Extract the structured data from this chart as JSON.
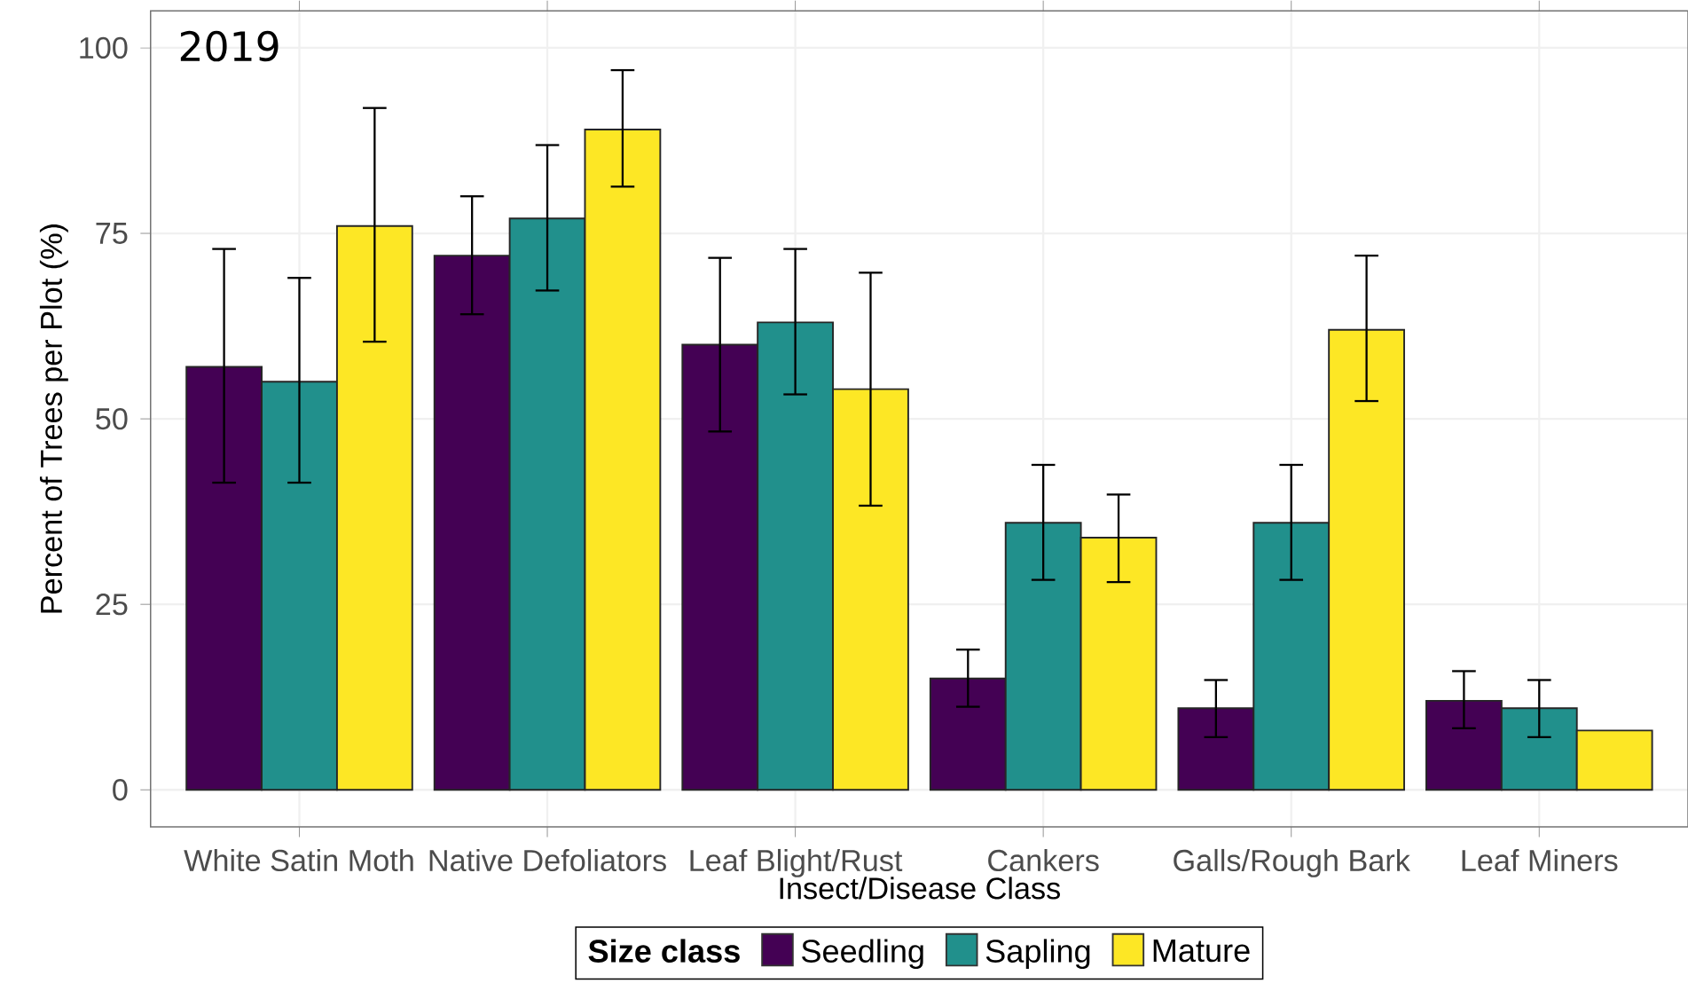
{
  "chart_data": {
    "type": "bar",
    "xlabel": "Insect/Disease Class",
    "ylabel": "Percent of Trees per Plot (%)",
    "legend_title": "Size class",
    "annotations": [
      "2019"
    ],
    "categories": [
      "White Satin Moth",
      "Native Defoliators",
      "Leaf Blight/Rust",
      "Cankers",
      "Galls/Rough Bark",
      "Leaf Miners"
    ],
    "series": [
      {
        "name": "Seedling",
        "color": "#440154",
        "values": [
          57,
          72,
          60,
          15,
          11,
          12
        ],
        "errors": [
          [
            41.4,
            72.9
          ],
          [
            64.1,
            80
          ],
          [
            48.3,
            71.7
          ],
          [
            11.2,
            18.9
          ],
          [
            7.1,
            14.8
          ],
          [
            8.3,
            16
          ]
        ]
      },
      {
        "name": "Sapling",
        "color": "#21908c",
        "values": [
          55,
          77,
          63,
          36,
          36,
          11
        ],
        "errors": [
          [
            41.4,
            69
          ],
          [
            67.3,
            86.9
          ],
          [
            53.3,
            72.9
          ],
          [
            28.3,
            43.8
          ],
          [
            28.3,
            43.8
          ],
          [
            7.1,
            14.8
          ]
        ]
      },
      {
        "name": "Mature",
        "color": "#fde725",
        "values": [
          76,
          89,
          54,
          34,
          62,
          8
        ],
        "errors": [
          [
            60.4,
            91.9
          ],
          [
            81.3,
            97
          ],
          [
            38.3,
            69.7
          ],
          [
            28,
            39.8
          ],
          [
            52.4,
            72
          ],
          null
        ]
      }
    ],
    "ylim": [
      -5,
      105
    ],
    "yticks": [
      0,
      25,
      50,
      75,
      100
    ],
    "grid": true,
    "legend": "bottom"
  }
}
